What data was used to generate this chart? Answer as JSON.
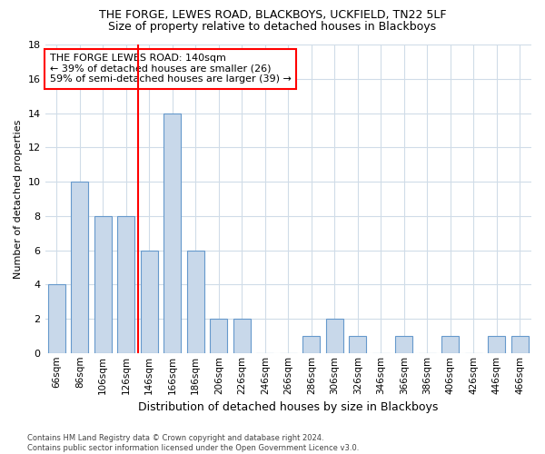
{
  "title": "THE FORGE, LEWES ROAD, BLACKBOYS, UCKFIELD, TN22 5LF",
  "subtitle": "Size of property relative to detached houses in Blackboys",
  "xlabel": "Distribution of detached houses by size in Blackboys",
  "ylabel": "Number of detached properties",
  "bin_labels": [
    "66sqm",
    "86sqm",
    "106sqm",
    "126sqm",
    "146sqm",
    "166sqm",
    "186sqm",
    "206sqm",
    "226sqm",
    "246sqm",
    "266sqm",
    "286sqm",
    "306sqm",
    "326sqm",
    "346sqm",
    "366sqm",
    "386sqm",
    "406sqm",
    "426sqm",
    "446sqm",
    "466sqm"
  ],
  "values": [
    4,
    10,
    8,
    8,
    6,
    14,
    6,
    2,
    2,
    0,
    0,
    1,
    2,
    1,
    0,
    1,
    0,
    1,
    0,
    1,
    1
  ],
  "bar_color": "#c8d8ea",
  "bar_edge_color": "#6699cc",
  "red_line_index": 4,
  "ylim": [
    0,
    18
  ],
  "yticks": [
    0,
    2,
    4,
    6,
    8,
    10,
    12,
    14,
    16,
    18
  ],
  "annotation_text": "THE FORGE LEWES ROAD: 140sqm\n← 39% of detached houses are smaller (26)\n59% of semi-detached houses are larger (39) →",
  "footer_line1": "Contains HM Land Registry data © Crown copyright and database right 2024.",
  "footer_line2": "Contains public sector information licensed under the Open Government Licence v3.0.",
  "background_color": "#ffffff",
  "grid_color": "#d0dce8"
}
